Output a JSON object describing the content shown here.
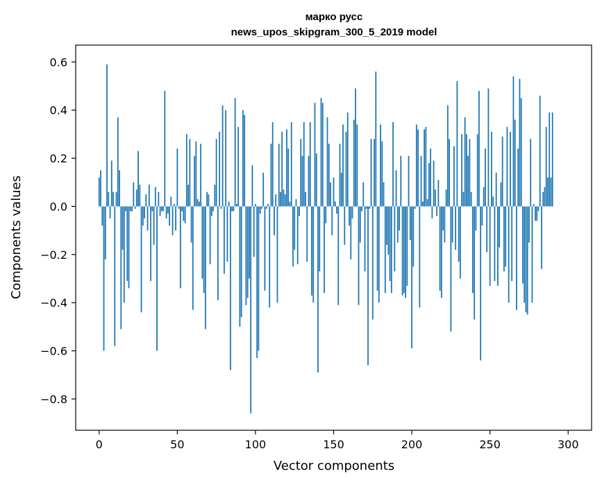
{
  "chart_data": {
    "type": "bar",
    "title_line1": "марко русс",
    "title_line2": "news_upos_skipgram_300_5_2019 model",
    "xlabel": "Vector components",
    "ylabel": "Components values",
    "xlim": [
      -15,
      315
    ],
    "ylim": [
      -0.93,
      0.67
    ],
    "xticks": [
      0,
      50,
      100,
      150,
      200,
      250,
      300
    ],
    "xtick_labels": [
      "0",
      "50",
      "100",
      "150",
      "200",
      "250",
      "300"
    ],
    "yticks": [
      -0.8,
      -0.6,
      -0.4,
      -0.2,
      0.0,
      0.2,
      0.4,
      0.6
    ],
    "ytick_labels": [
      "−0.8",
      "−0.6",
      "−0.4",
      "−0.2",
      "0.0",
      "0.2",
      "0.4",
      "0.6"
    ],
    "bar_color": "#1f77b4",
    "grid": false,
    "values": [
      0.12,
      0.15,
      -0.08,
      -0.6,
      -0.22,
      0.59,
      0.06,
      -0.05,
      0.19,
      0.06,
      -0.58,
      0.06,
      0.37,
      0.15,
      -0.51,
      -0.18,
      -0.4,
      -0.02,
      -0.31,
      -0.34,
      -0.02,
      -0.02,
      0.1,
      -0.01,
      0.07,
      0.23,
      0.09,
      -0.44,
      -0.08,
      -0.05,
      0.05,
      -0.1,
      0.09,
      -0.31,
      -0.02,
      -0.16,
      0.08,
      -0.6,
      0.06,
      -0.04,
      -0.02,
      -0.02,
      0.48,
      -0.05,
      -0.03,
      -0.08,
      0.04,
      -0.12,
      0.01,
      -0.1,
      0.24,
      -0.01,
      -0.34,
      -0.02,
      -0.06,
      -0.07,
      0.3,
      0.09,
      0.28,
      -0.15,
      -0.43,
      0.21,
      0.27,
      0.03,
      0.02,
      0.26,
      -0.3,
      -0.36,
      -0.51,
      0.06,
      0.05,
      -0.24,
      -0.04,
      -0.02,
      0.09,
      0.28,
      -0.39,
      0.31,
      -0.01,
      0.42,
      -0.28,
      0.4,
      -0.23,
      0.02,
      -0.68,
      -0.02,
      -0.02,
      0.45,
      0.01,
      0.33,
      -0.5,
      -0.46,
      0.4,
      0.38,
      -0.41,
      -0.38,
      -0.3,
      -0.86,
      0.17,
      -0.21,
      0.01,
      -0.63,
      -0.6,
      -0.03,
      -0.01,
      0.14,
      -0.35,
      -0.01,
      0.01,
      -0.42,
      0.26,
      0.35,
      -0.12,
      0.05,
      -0.4,
      0.26,
      0.06,
      0.31,
      0.07,
      0.05,
      0.32,
      0.24,
      0.02,
      0.35,
      -0.25,
      -0.18,
      0.03,
      -0.24,
      -0.04,
      0.28,
      0.21,
      0.35,
      0.06,
      -0.23,
      0.21,
      0.35,
      -0.37,
      -0.4,
      0.43,
      0.22,
      -0.69,
      -0.27,
      0.45,
      0.43,
      -0.36,
      -0.07,
      0.37,
      0.26,
      0.1,
      -0.12,
      0.12,
      0.02,
      -0.03,
      -0.41,
      0.26,
      0.14,
      0.34,
      -0.16,
      0.31,
      0.39,
      -0.08,
      -0.22,
      -0.05,
      0.36,
      0.49,
      0.34,
      -0.41,
      -0.15,
      -0.02,
      0.1,
      -0.27,
      -0.01,
      -0.66,
      -0.01,
      0.28,
      -0.47,
      0.28,
      0.56,
      -0.35,
      -0.4,
      0.34,
      0.27,
      0.1,
      -0.36,
      -0.16,
      -0.2,
      -0.31,
      -0.36,
      0.35,
      -0.27,
      0.15,
      -0.15,
      -0.1,
      0.21,
      -0.37,
      -0.36,
      -0.38,
      -0.33,
      0.21,
      -0.14,
      -0.59,
      -0.25,
      -0.01,
      0.34,
      0.32,
      -0.42,
      0.21,
      0.02,
      0.32,
      0.33,
      0.03,
      0.18,
      0.24,
      -0.05,
      0.19,
      0.07,
      -0.04,
      0.11,
      -0.35,
      -0.38,
      -0.1,
      -0.15,
      0.07,
      0.42,
      0.28,
      -0.52,
      -0.15,
      0.25,
      -0.18,
      0.52,
      -0.23,
      -0.3,
      0.3,
      0.06,
      0.37,
      0.3,
      0.21,
      0.28,
      0.06,
      -0.36,
      -0.47,
      -0.1,
      0.3,
      0.48,
      -0.64,
      -0.08,
      0.08,
      0.24,
      -0.19,
      0.49,
      -0.33,
      0.31,
      0.04,
      -0.31,
      0.14,
      -0.33,
      -0.17,
      0.1,
      0.29,
      -0.27,
      -0.25,
      0.33,
      -0.4,
      0.31,
      -0.31,
      0.54,
      0.36,
      -0.43,
      0.24,
      0.53,
      0.45,
      -0.32,
      -0.4,
      -0.44,
      -0.45,
      -0.15,
      0.28,
      -0.4,
      0.01,
      -0.06,
      -0.06,
      -0.02,
      0.46,
      -0.26,
      0.06,
      0.08,
      0.33,
      0.12,
      0.39,
      0.12,
      0.39
    ]
  }
}
